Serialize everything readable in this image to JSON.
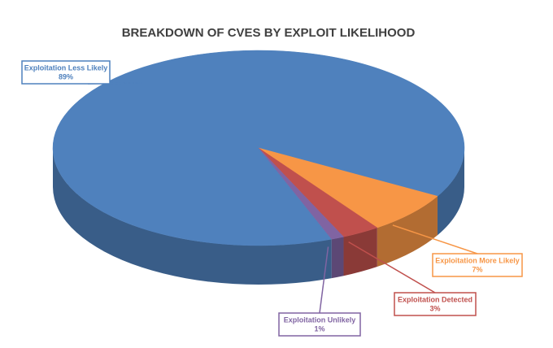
{
  "chart_data": {
    "type": "pie3d",
    "title": "BREAKDOWN OF CVES BY EXPLOIT LIKELIHOOD",
    "categories": [
      "Exploitation Less Likely",
      "Exploitation More Likely",
      "Exploitation Detected",
      "Exploitation Unlikely"
    ],
    "values": [
      89,
      7,
      3,
      1
    ],
    "value_labels": [
      "89%",
      "7%",
      "3%",
      "1%"
    ],
    "colors": [
      "#4f81bd",
      "#f79646",
      "#c0504d",
      "#8064a2"
    ]
  }
}
